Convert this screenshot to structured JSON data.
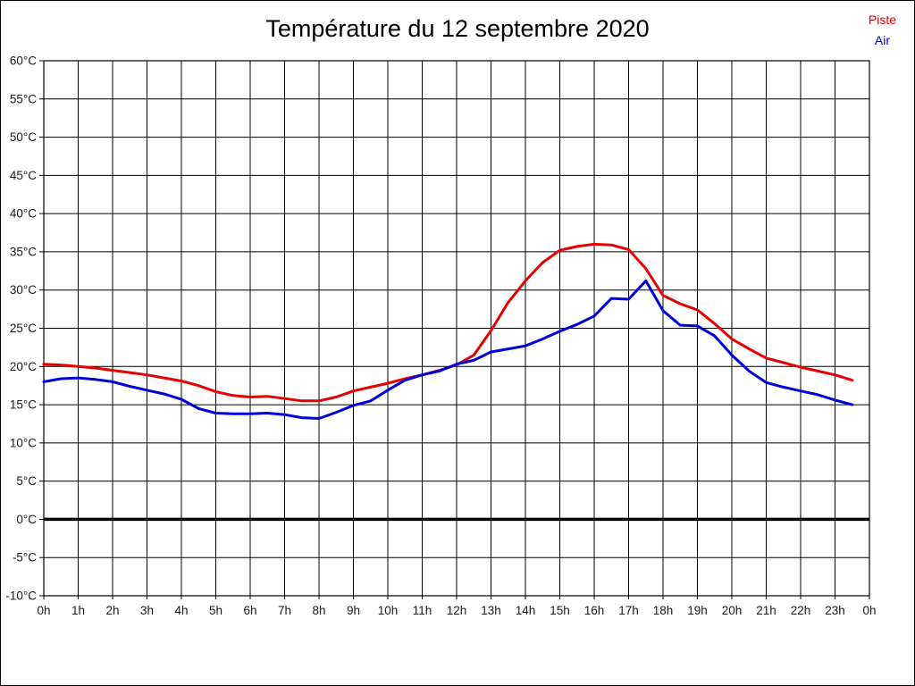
{
  "chart_data": {
    "type": "line",
    "title": "Température du 12 septembre 2020",
    "xlabel": "",
    "ylabel": "",
    "xlim": [
      0,
      24
    ],
    "ylim": [
      -10,
      60
    ],
    "y_tick_step": 5,
    "grid": true,
    "zero_line_bold": true,
    "legend_position": "top-right",
    "x_tick_labels": [
      "0h",
      "1h",
      "2h",
      "3h",
      "4h",
      "5h",
      "6h",
      "7h",
      "8h",
      "9h",
      "10h",
      "11h",
      "12h",
      "13h",
      "14h",
      "15h",
      "16h",
      "17h",
      "18h",
      "19h",
      "20h",
      "21h",
      "22h",
      "23h",
      "0h"
    ],
    "y_tick_labels": [
      "60°C",
      "55°C",
      "50°C",
      "45°C",
      "40°C",
      "35°C",
      "30°C",
      "25°C",
      "20°C",
      "15°C",
      "10°C",
      "5°C",
      "0°C",
      "-5°C",
      "-10°C"
    ],
    "x": [
      0,
      0.5,
      1,
      1.5,
      2,
      2.5,
      3,
      3.5,
      4,
      4.5,
      5,
      5.5,
      6,
      6.5,
      7,
      7.5,
      8,
      8.5,
      9,
      9.5,
      10,
      10.5,
      11,
      11.5,
      12,
      12.5,
      13,
      13.5,
      14,
      14.5,
      15,
      15.5,
      16,
      16.5,
      17,
      17.5,
      18,
      18.5,
      19,
      19.5,
      20,
      20.5,
      21,
      21.5,
      22,
      22.5,
      23,
      23.5
    ],
    "series": [
      {
        "name": "Piste",
        "color": "#e60000",
        "values": [
          20.3,
          20.2,
          20.0,
          19.8,
          19.5,
          19.2,
          18.9,
          18.5,
          18.1,
          17.5,
          16.7,
          16.2,
          16.0,
          16.1,
          15.8,
          15.5,
          15.5,
          16.0,
          16.8,
          17.3,
          17.8,
          18.4,
          18.9,
          19.5,
          20.2,
          21.5,
          24.7,
          28.4,
          31.2,
          33.6,
          35.2,
          35.7,
          36.0,
          35.9,
          35.3,
          32.8,
          29.3,
          28.2,
          27.4,
          25.6,
          23.6,
          22.3,
          21.1,
          20.5,
          19.9,
          19.4,
          18.9,
          18.2
        ]
      },
      {
        "name": "Air",
        "color": "#0000dd",
        "values": [
          18.0,
          18.4,
          18.5,
          18.3,
          18.0,
          17.4,
          16.9,
          16.4,
          15.7,
          14.5,
          13.9,
          13.8,
          13.8,
          13.9,
          13.7,
          13.3,
          13.2,
          14.0,
          14.9,
          15.5,
          16.9,
          18.2,
          18.9,
          19.4,
          20.3,
          20.8,
          21.9,
          22.3,
          22.7,
          23.6,
          24.6,
          25.5,
          26.6,
          28.9,
          28.8,
          31.2,
          27.3,
          25.4,
          25.3,
          24.0,
          21.5,
          19.4,
          17.9,
          17.3,
          16.8,
          16.3,
          15.6,
          15.0
        ]
      }
    ]
  }
}
